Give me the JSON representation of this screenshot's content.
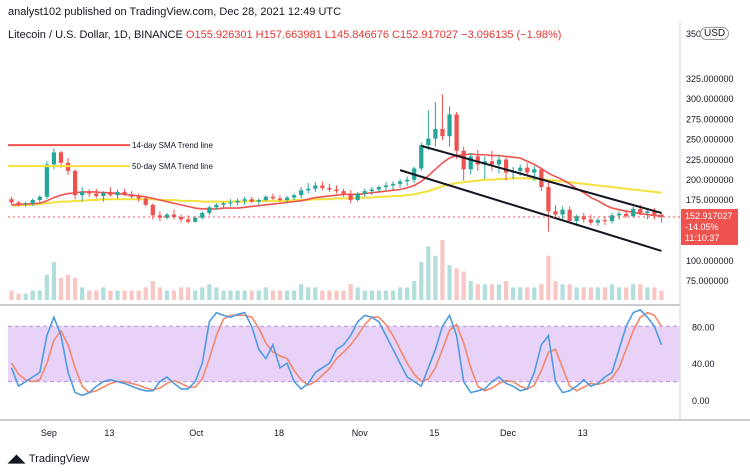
{
  "header": {
    "published": "analyst102 published on TradingView.com, Dec 28, 2021 12:49 UTC"
  },
  "symbol": {
    "name": "Litecoin / U.S. Dollar, 1D, BINANCE",
    "ohlc": "O155.926301 H157.663981 L145.846676 C152.917027 −3.096135 (−1.98%)"
  },
  "price_axis": {
    "currency": "USD",
    "ticks": [
      "350.000000",
      "325.000000",
      "300.000000",
      "275.000000",
      "250.000000",
      "225.000000",
      "200.000000",
      "175.000000",
      "100.000000",
      "75.000000"
    ],
    "last_price": "152.917027",
    "last_change": "-14.05%",
    "countdown": "11:10:37"
  },
  "osc_axis": {
    "ticks": [
      "80.00",
      "40.00",
      "0.00"
    ]
  },
  "time_axis": {
    "labels": [
      "Sep",
      "13",
      "Oct",
      "18",
      "Nov",
      "15",
      "Dec",
      "13"
    ]
  },
  "annotations": {
    "sma14": "14-day SMA Trend line",
    "sma50": "50-day SMA Trend line"
  },
  "footer": {
    "brand": "TradingView"
  },
  "colors": {
    "up": "#26a69a",
    "down": "#ef5350",
    "sma14": "#ef5350",
    "sma50": "#f5e13b",
    "k_line": "#4e9be0",
    "d_line": "#f2886a",
    "osc_band": "#e2c6f7"
  },
  "chart_data": {
    "type": "candlestick",
    "ohlc": [
      [
        175,
        178,
        168,
        171
      ],
      [
        171,
        173,
        166,
        169
      ],
      [
        169,
        172,
        165,
        170
      ],
      [
        170,
        176,
        167,
        174
      ],
      [
        174,
        180,
        170,
        178
      ],
      [
        178,
        222,
        175,
        218
      ],
      [
        218,
        238,
        212,
        233
      ],
      [
        233,
        235,
        214,
        220
      ],
      [
        220,
        226,
        205,
        210
      ],
      [
        210,
        212,
        175,
        180
      ],
      [
        180,
        190,
        172,
        184
      ],
      [
        184,
        187,
        178,
        182
      ],
      [
        182,
        188,
        176,
        179
      ],
      [
        179,
        185,
        172,
        183
      ],
      [
        183,
        190,
        178,
        180
      ],
      [
        180,
        187,
        176,
        184
      ],
      [
        184,
        188,
        179,
        181
      ],
      [
        181,
        185,
        176,
        178
      ],
      [
        178,
        182,
        172,
        176
      ],
      [
        176,
        178,
        166,
        168
      ],
      [
        168,
        170,
        150,
        155
      ],
      [
        155,
        160,
        148,
        152
      ],
      [
        152,
        158,
        150,
        156
      ],
      [
        156,
        162,
        150,
        153
      ],
      [
        153,
        156,
        146,
        150
      ],
      [
        150,
        155,
        145,
        147
      ],
      [
        147,
        154,
        146,
        152
      ],
      [
        152,
        160,
        150,
        158
      ],
      [
        158,
        167,
        155,
        165
      ],
      [
        165,
        170,
        162,
        168
      ],
      [
        168,
        172,
        164,
        170
      ],
      [
        170,
        175,
        166,
        171
      ],
      [
        171,
        176,
        167,
        173
      ],
      [
        173,
        178,
        168,
        175
      ],
      [
        175,
        178,
        170,
        172
      ],
      [
        172,
        176,
        168,
        174
      ],
      [
        174,
        180,
        172,
        178
      ],
      [
        178,
        182,
        174,
        176
      ],
      [
        176,
        180,
        172,
        174
      ],
      [
        174,
        179,
        171,
        177
      ],
      [
        177,
        182,
        174,
        180
      ],
      [
        180,
        190,
        176,
        186
      ],
      [
        186,
        195,
        182,
        188
      ],
      [
        188,
        196,
        184,
        192
      ],
      [
        192,
        197,
        186,
        189
      ],
      [
        189,
        194,
        184,
        187
      ],
      [
        187,
        192,
        182,
        185
      ],
      [
        185,
        188,
        178,
        181
      ],
      [
        181,
        186,
        170,
        174
      ],
      [
        174,
        184,
        172,
        182
      ],
      [
        182,
        188,
        178,
        185
      ],
      [
        185,
        190,
        180,
        187
      ],
      [
        187,
        192,
        184,
        190
      ],
      [
        190,
        196,
        185,
        192
      ],
      [
        192,
        197,
        187,
        194
      ],
      [
        194,
        200,
        189,
        197
      ],
      [
        197,
        203,
        191,
        199
      ],
      [
        199,
        215,
        195,
        213
      ],
      [
        213,
        245,
        210,
        242
      ],
      [
        242,
        285,
        236,
        250
      ],
      [
        250,
        295,
        240,
        262
      ],
      [
        262,
        305,
        248,
        253
      ],
      [
        253,
        290,
        240,
        280
      ],
      [
        280,
        283,
        225,
        235
      ],
      [
        235,
        240,
        198,
        212
      ],
      [
        212,
        232,
        206,
        228
      ],
      [
        228,
        236,
        210,
        218
      ],
      [
        218,
        228,
        200,
        222
      ],
      [
        222,
        235,
        210,
        218
      ],
      [
        218,
        230,
        207,
        224
      ],
      [
        224,
        228,
        198,
        208
      ],
      [
        208,
        215,
        200,
        210
      ],
      [
        210,
        218,
        204,
        214
      ],
      [
        214,
        220,
        204,
        208
      ],
      [
        208,
        216,
        198,
        212
      ],
      [
        212,
        214,
        185,
        190
      ],
      [
        190,
        196,
        135,
        160
      ],
      [
        160,
        168,
        152,
        156
      ],
      [
        156,
        166,
        150,
        162
      ],
      [
        162,
        166,
        145,
        148
      ],
      [
        148,
        156,
        142,
        154
      ],
      [
        154,
        158,
        146,
        150
      ],
      [
        150,
        156,
        143,
        146
      ],
      [
        146,
        152,
        142,
        149
      ],
      [
        149,
        154,
        143,
        148
      ],
      [
        148,
        158,
        145,
        155
      ],
      [
        155,
        160,
        150,
        157
      ],
      [
        157,
        162,
        152,
        154
      ],
      [
        154,
        166,
        152,
        163
      ],
      [
        163,
        168,
        155,
        158
      ],
      [
        158,
        163,
        150,
        160
      ],
      [
        160,
        164,
        150,
        156
      ],
      [
        156,
        158,
        146,
        153
      ]
    ],
    "volume": [
      3,
      2,
      2,
      3,
      3,
      8,
      12,
      7,
      8,
      7,
      4,
      3,
      3,
      4,
      3,
      3,
      3,
      3,
      3,
      4,
      6,
      4,
      3,
      3,
      4,
      4,
      3,
      4,
      5,
      4,
      3,
      3,
      3,
      3,
      3,
      3,
      4,
      3,
      3,
      3,
      3,
      5,
      4,
      4,
      3,
      3,
      3,
      3,
      5,
      4,
      3,
      3,
      3,
      3,
      3,
      4,
      4,
      6,
      12,
      17,
      14,
      19,
      11,
      10,
      9,
      6,
      5,
      5,
      5,
      5,
      6,
      4,
      4,
      4,
      4,
      5,
      14,
      6,
      5,
      5,
      4,
      4,
      4,
      4,
      4,
      5,
      4,
      4,
      5,
      5,
      4,
      4,
      3
    ],
    "sma14": [
      168,
      168.5,
      169,
      169.5,
      170,
      173,
      177,
      180,
      182,
      183,
      184,
      184,
      184,
      183,
      183,
      182,
      181,
      180,
      179,
      178,
      176,
      174,
      172,
      170,
      168,
      166,
      164,
      163,
      163,
      163,
      164,
      164,
      164,
      165,
      166,
      167,
      168,
      169,
      170,
      171,
      172,
      173,
      175,
      177,
      178,
      179,
      180,
      181,
      181,
      181,
      182,
      183,
      184,
      185,
      186,
      187,
      189,
      192,
      197,
      204,
      212,
      220,
      226,
      229,
      230,
      231,
      230,
      230,
      229,
      229,
      228,
      227,
      226,
      222,
      218,
      213,
      207,
      203,
      199,
      194,
      188,
      183,
      177,
      173,
      168,
      164,
      162,
      160,
      159,
      157,
      156,
      155,
      154
    ],
    "sma50": [
      167,
      167,
      168,
      168,
      169,
      170,
      171,
      172,
      172,
      173,
      173,
      174,
      174,
      175,
      175,
      175,
      175,
      175,
      175,
      175,
      175,
      174,
      174,
      174,
      173,
      173,
      173,
      172,
      172,
      172,
      172,
      172,
      172,
      172,
      173,
      173,
      173,
      173,
      173,
      173,
      174,
      174,
      174,
      175,
      175,
      175,
      176,
      176,
      176,
      177,
      177,
      177,
      178,
      178,
      179,
      179,
      180,
      181,
      183,
      185,
      188,
      191,
      193,
      195,
      196,
      197,
      198,
      199,
      199,
      200,
      200,
      201,
      201,
      201,
      200,
      200,
      199,
      198,
      197,
      196,
      195,
      194,
      193,
      192,
      191,
      190,
      189,
      188,
      187,
      186,
      185,
      184,
      183
    ],
    "stoch_k": [
      35,
      15,
      20,
      25,
      30,
      70,
      90,
      70,
      30,
      8,
      5,
      8,
      15,
      20,
      22,
      20,
      18,
      15,
      12,
      10,
      10,
      20,
      25,
      18,
      12,
      12,
      20,
      40,
      85,
      95,
      92,
      90,
      93,
      95,
      80,
      55,
      45,
      60,
      35,
      40,
      20,
      12,
      18,
      30,
      35,
      40,
      55,
      60,
      70,
      85,
      92,
      90,
      85,
      70,
      55,
      40,
      25,
      20,
      15,
      35,
      55,
      80,
      92,
      70,
      20,
      8,
      10,
      12,
      20,
      25,
      18,
      15,
      10,
      12,
      30,
      60,
      70,
      20,
      8,
      10,
      15,
      22,
      15,
      18,
      25,
      30,
      55,
      80,
      95,
      98,
      90,
      80,
      60
    ],
    "stoch_d": [
      40,
      28,
      22,
      20,
      22,
      40,
      65,
      75,
      60,
      35,
      15,
      8,
      10,
      14,
      18,
      20,
      20,
      18,
      16,
      13,
      11,
      13,
      18,
      21,
      18,
      14,
      14,
      23,
      45,
      70,
      88,
      92,
      92,
      92,
      90,
      78,
      62,
      52,
      48,
      45,
      32,
      22,
      16,
      20,
      27,
      34,
      45,
      52,
      60,
      70,
      82,
      90,
      90,
      82,
      70,
      55,
      40,
      28,
      20,
      23,
      35,
      55,
      76,
      82,
      62,
      35,
      15,
      10,
      13,
      18,
      21,
      20,
      15,
      12,
      16,
      32,
      52,
      55,
      35,
      15,
      10,
      14,
      18,
      17,
      19,
      24,
      35,
      55,
      75,
      90,
      95,
      92,
      80
    ]
  }
}
